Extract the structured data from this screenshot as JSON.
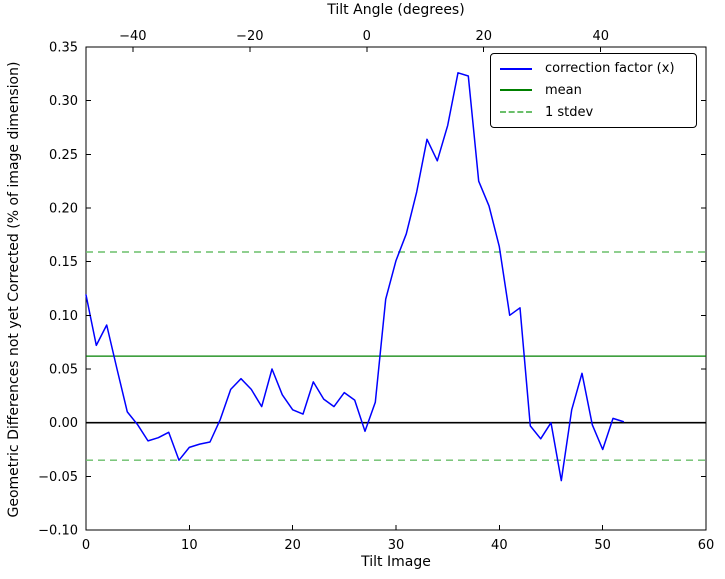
{
  "chart_data": {
    "type": "line",
    "title": "",
    "xlabel": "Tilt Image",
    "ylabel": "Geometric Differences not yet Corrected (% of image dimension)",
    "xlim": [
      0,
      60
    ],
    "ylim": [
      -0.1,
      0.35
    ],
    "x_ticks": [
      0,
      10,
      20,
      30,
      40,
      50,
      60
    ],
    "y_ticks": [
      -0.1,
      -0.05,
      0.0,
      0.05,
      0.1,
      0.15,
      0.2,
      0.25,
      0.3,
      0.35
    ],
    "top_axis": {
      "label": "Tilt Angle (degrees)",
      "range": [
        -48,
        58
      ],
      "ticks": [
        -40,
        -20,
        0,
        20,
        40
      ]
    },
    "grid": false,
    "legend_position": "upper right",
    "series": [
      {
        "name": "correction factor (x)",
        "color": "#0000ff",
        "style": "solid",
        "x": [
          0,
          1,
          2,
          3,
          4,
          5,
          6,
          7,
          8,
          9,
          10,
          11,
          12,
          13,
          14,
          15,
          16,
          17,
          18,
          19,
          20,
          21,
          22,
          23,
          24,
          25,
          26,
          27,
          28,
          29,
          30,
          31,
          32,
          33,
          34,
          35,
          36,
          37,
          38,
          39,
          40,
          41,
          42,
          43,
          44,
          45,
          46,
          47,
          48,
          49,
          50,
          51,
          52
        ],
        "values": [
          0.119,
          0.072,
          0.091,
          0.05,
          0.01,
          -0.002,
          -0.017,
          -0.014,
          -0.009,
          -0.035,
          -0.023,
          -0.02,
          -0.018,
          0.003,
          0.031,
          0.041,
          0.031,
          0.015,
          0.05,
          0.026,
          0.012,
          0.008,
          0.038,
          0.022,
          0.015,
          0.028,
          0.021,
          -0.008,
          0.019,
          0.115,
          0.151,
          0.176,
          0.215,
          0.264,
          0.244,
          0.277,
          0.326,
          0.323,
          0.225,
          0.202,
          0.164,
          0.1,
          0.107,
          -0.003,
          -0.015,
          0.0,
          -0.054,
          0.012,
          0.046,
          -0.002,
          -0.025,
          0.004,
          0.001
        ]
      }
    ],
    "reference_lines": [
      {
        "name": "zero baseline",
        "value": 0.0,
        "color": "#000000",
        "style": "solid",
        "width": 1.6
      },
      {
        "name": "stdev upper",
        "value": 0.159,
        "color": "#6abf6a",
        "style": "dashed",
        "width": 1.4
      },
      {
        "name": "stdev lower",
        "value": -0.035,
        "color": "#6abf6a",
        "style": "dashed",
        "width": 1.4
      },
      {
        "name": "mean",
        "value": 0.062,
        "color": "#008000",
        "style": "solid",
        "width": 1.2
      }
    ],
    "legend": [
      {
        "label": "correction factor (x)",
        "color": "#0000ff",
        "style": "solid"
      },
      {
        "label": "mean",
        "color": "#008000",
        "style": "solid"
      },
      {
        "label": "1 stdev",
        "color": "#6abf6a",
        "style": "dashed"
      }
    ],
    "stats": {
      "mean": 0.062,
      "stdev": 0.097
    }
  }
}
